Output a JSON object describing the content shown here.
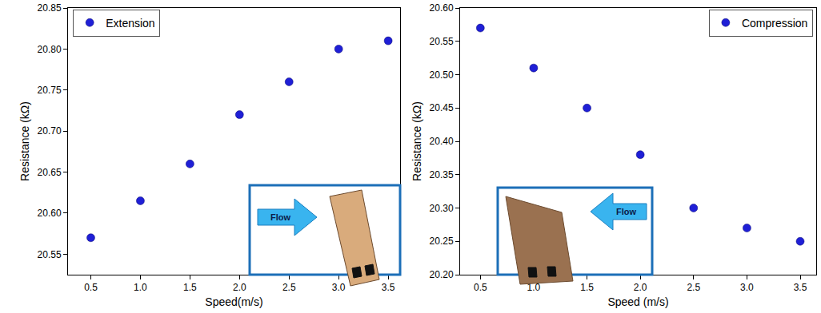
{
  "chart_data": [
    {
      "type": "scatter",
      "x": [
        0.5,
        1.0,
        1.5,
        2.0,
        2.5,
        3.0,
        3.5
      ],
      "series": [
        {
          "name": "Extension",
          "color": "#1f1fd6",
          "marker": "circle",
          "values": [
            20.57,
            20.615,
            20.66,
            20.72,
            20.76,
            20.8,
            20.81
          ]
        }
      ],
      "x_label": "Speed(m/s)",
      "y_label": "Resistance (kΩ)",
      "xlim": [
        0.27,
        3.62
      ],
      "ylim": [
        20.525,
        20.85
      ],
      "xticks": [
        0.5,
        {
          "value": 1,
          "label": "1.0"
        },
        1.5,
        {
          "value": 2,
          "label": "2.0"
        },
        2.5,
        {
          "value": 3,
          "label": "3.0"
        },
        3.5
      ],
      "yticks": [
        20.55,
        {
          "value": 20.6,
          "label": "20.60"
        },
        20.65,
        {
          "value": 20.7,
          "label": "20.70"
        },
        20.75,
        {
          "value": 20.8,
          "label": "20.80"
        },
        20.85
      ],
      "legend": "upper left",
      "grid": false,
      "annotations": [
        "Flow"
      ]
    },
    {
      "type": "scatter",
      "x": [
        0.5,
        1.0,
        1.5,
        2.0,
        2.5,
        3.0,
        3.5
      ],
      "series": [
        {
          "name": "Compression",
          "color": "#1f1fd6",
          "marker": "circle",
          "values": [
            20.57,
            20.51,
            20.45,
            20.38,
            20.3,
            20.27,
            20.25
          ]
        }
      ],
      "x_label": "Speed (m/s)",
      "y_label": "Resistance (kΩ)",
      "xlim": [
        0.31,
        3.65
      ],
      "ylim": [
        20.2,
        20.6
      ],
      "xticks": [
        0.5,
        {
          "value": 1,
          "label": "1.0"
        },
        1.5,
        {
          "value": 2,
          "label": "2.0"
        },
        2.5,
        {
          "value": 3,
          "label": "3.0"
        },
        3.5
      ],
      "yticks": [
        {
          "value": 20.2,
          "label": "20.20"
        },
        20.25,
        {
          "value": 20.3,
          "label": "20.30"
        },
        20.35,
        {
          "value": 20.4,
          "label": "20.40"
        },
        20.45,
        {
          "value": 20.5,
          "label": "20.50"
        },
        20.55,
        {
          "value": 20.6,
          "label": "20.60"
        }
      ],
      "legend": "upper right",
      "grid": false,
      "annotations": [
        "Flow"
      ]
    }
  ]
}
